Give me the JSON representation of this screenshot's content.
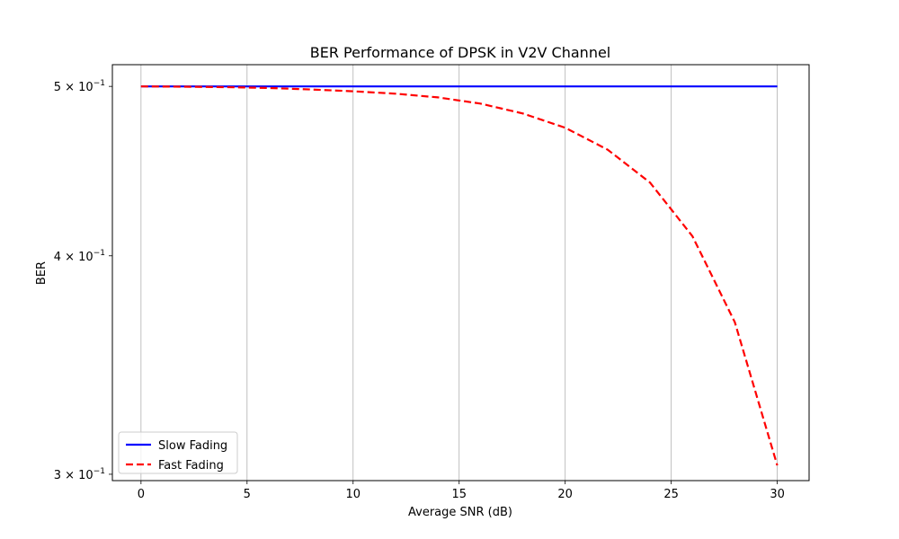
{
  "chart_data": {
    "type": "line",
    "title": "BER Performance of DPSK in V2V Channel",
    "xlabel": "Average SNR (dB)",
    "ylabel": "BER",
    "x": [
      0,
      2,
      4,
      6,
      8,
      10,
      12,
      14,
      16,
      18,
      20,
      22,
      24,
      26,
      28,
      30
    ],
    "series": [
      {
        "name": "Slow Fading",
        "color": "#0000ff",
        "style": "solid",
        "values": [
          0.5,
          0.5,
          0.5,
          0.5,
          0.5,
          0.5,
          0.5,
          0.5,
          0.5,
          0.5,
          0.5,
          0.5,
          0.5,
          0.5,
          0.5,
          0.5
        ]
      },
      {
        "name": "Fast Fading",
        "color": "#ff0000",
        "style": "dashed",
        "values": [
          0.5,
          0.4998,
          0.4995,
          0.499,
          0.498,
          0.4968,
          0.4952,
          0.4928,
          0.4888,
          0.4825,
          0.4735,
          0.46,
          0.4405,
          0.4105,
          0.3665,
          0.3035
        ]
      }
    ],
    "xlim": [
      -1.35,
      31.5
    ],
    "ylim": [
      0.2975,
      0.5145
    ],
    "yscale": "log",
    "xticks": [
      0,
      5,
      10,
      15,
      20,
      25,
      30
    ],
    "xtick_labels": [
      "0",
      "5",
      "10",
      "15",
      "20",
      "25",
      "30"
    ],
    "yticks": [
      0.3,
      0.4,
      0.5
    ],
    "ytick_labels": [
      {
        "base": "3 × 10",
        "exp": "−1"
      },
      {
        "base": "4 × 10",
        "exp": "−1"
      },
      {
        "base": "5 × 10",
        "exp": "−1"
      }
    ],
    "grid": "x",
    "legend_position": "lower-left"
  }
}
